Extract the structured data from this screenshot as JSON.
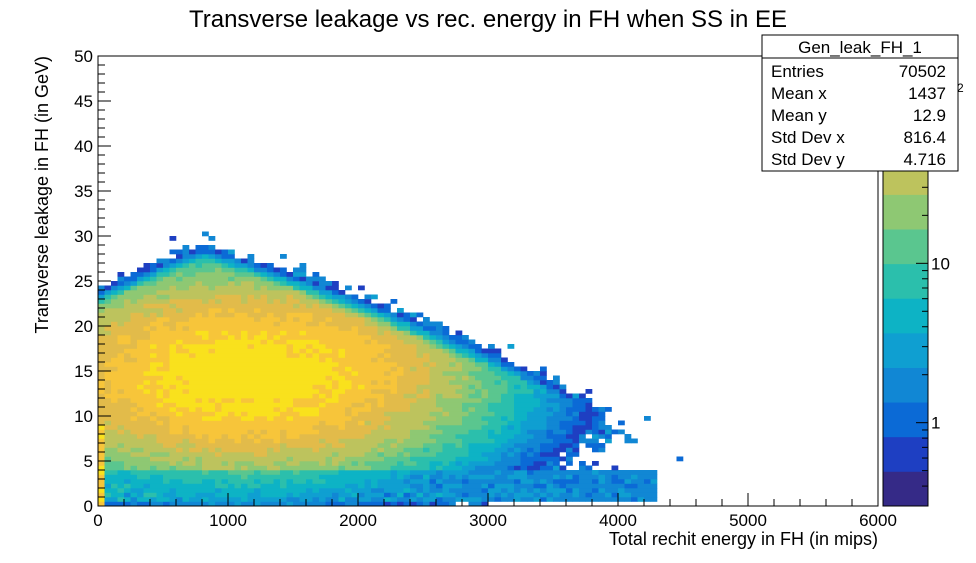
{
  "chart_data": {
    "type": "heatmap",
    "title": "Transverse leakage vs rec. energy in FH when SS in EE",
    "xlabel": "Total rechit energy in FH (in mips)",
    "ylabel": "Transverse leakage in FH (in GeV)",
    "xlim": [
      0,
      6000
    ],
    "ylim": [
      0,
      50
    ],
    "x_ticks": [
      0,
      1000,
      2000,
      3000,
      4000,
      5000,
      6000
    ],
    "y_ticks": [
      0,
      5,
      10,
      15,
      20,
      25,
      30,
      35,
      40,
      45,
      50
    ],
    "x_bin_width": 50,
    "y_bin_width": 0.5,
    "z_scale": "log",
    "z_range": [
      0.3,
      200
    ],
    "z_ticks": [
      1,
      10
    ],
    "z_exponent_fragment": "2",
    "grid": false,
    "stats_box": {
      "name": "Gen_leak_FH_1",
      "rows": [
        {
          "label": "Entries",
          "value": "70502"
        },
        {
          "label": "Mean x",
          "value": "1437"
        },
        {
          "label": "Mean y",
          "value": "12.9"
        },
        {
          "label": "Std Dev x",
          "value": "816.4"
        },
        {
          "label": "Std Dev y",
          "value": "4.716"
        }
      ]
    },
    "density_model": {
      "peak_x": 1150,
      "peak_y": 14.5,
      "peak_count": 180,
      "dense_min_count": 0.6,
      "sparse_max_count": 2,
      "band_y_range": [
        0.5,
        4
      ],
      "band_max_x": 4300
    }
  },
  "colors": {
    "palette": [
      "#352a87",
      "#1e3fc2",
      "#0b6ad6",
      "#1187d4",
      "#0f9fd1",
      "#0db3c5",
      "#2bbfac",
      "#5ac68f",
      "#8ec873",
      "#bdc35d",
      "#e2bb4a",
      "#f7c53a",
      "#f9e11d"
    ],
    "axis": "#000000",
    "background": "#ffffff"
  }
}
